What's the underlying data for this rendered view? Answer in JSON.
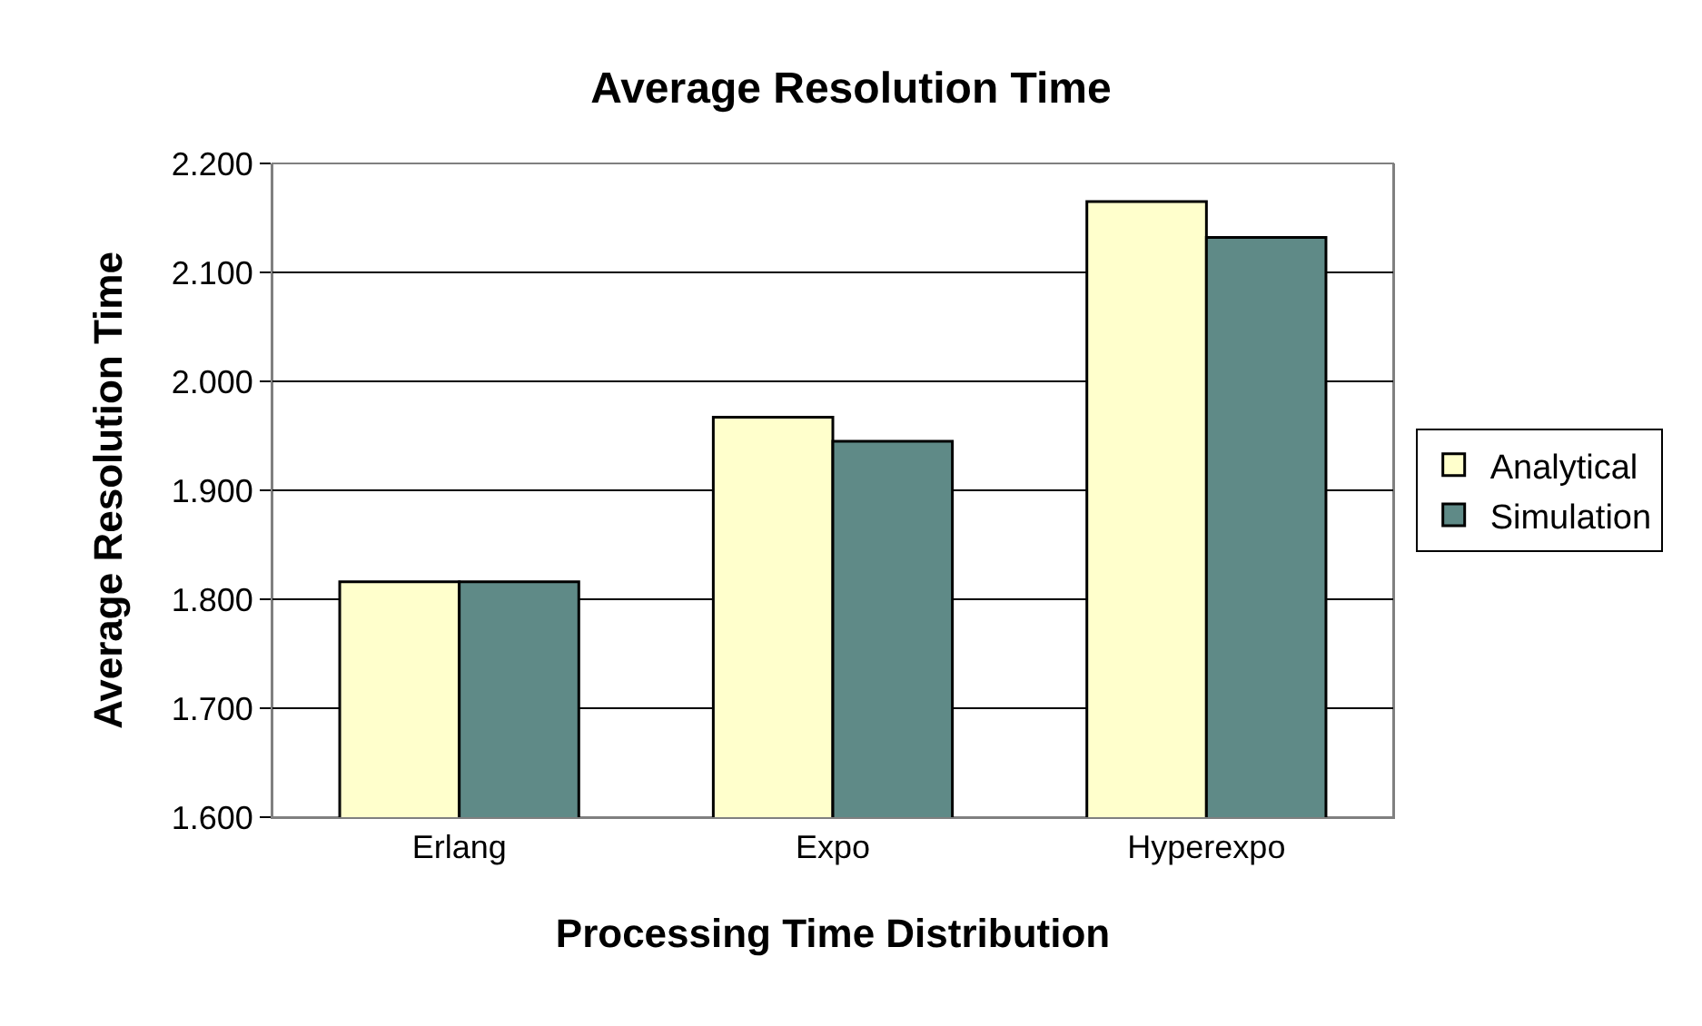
{
  "chart_data": {
    "type": "bar",
    "title": "Average Resolution Time",
    "xlabel": "Processing Time Distribution",
    "ylabel": "Average Resolution Time",
    "categories": [
      "Erlang",
      "Expo",
      "Hyperexpo"
    ],
    "series": [
      {
        "name": "Analytical",
        "color": "#ffffcc",
        "values": [
          1.816,
          1.967,
          2.165
        ]
      },
      {
        "name": "Simulation",
        "color": "#5f8a87",
        "values": [
          1.816,
          1.945,
          2.132
        ]
      }
    ],
    "ylim": [
      1.6,
      2.2
    ],
    "yticks": [
      {
        "value": 1.6,
        "label": "1.600"
      },
      {
        "value": 1.7,
        "label": "1.700"
      },
      {
        "value": 1.8,
        "label": "1.800"
      },
      {
        "value": 1.9,
        "label": "1.900"
      },
      {
        "value": 2.0,
        "label": "2.000"
      },
      {
        "value": 2.1,
        "label": "2.100"
      },
      {
        "value": 2.2,
        "label": "2.200"
      }
    ],
    "grid": "y",
    "legend": "right"
  }
}
